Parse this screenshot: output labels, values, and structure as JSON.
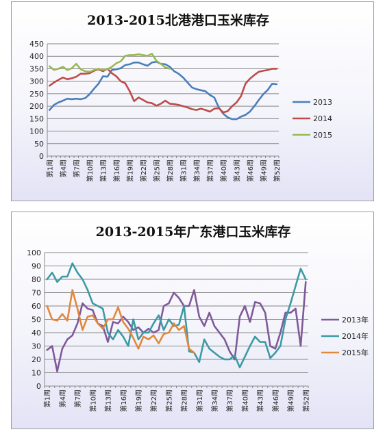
{
  "chart_data": [
    {
      "type": "line",
      "title": "2013-2015北港港口玉米库存",
      "ylim": [
        0,
        450
      ],
      "yticks": [
        0,
        50,
        100,
        150,
        200,
        250,
        300,
        350,
        400,
        450
      ],
      "xticks": [
        "第1周",
        "第4周",
        "第7周",
        "第10周",
        "第13周",
        "第16周",
        "第19周",
        "第22周",
        "第25周",
        "第28周",
        "第31周",
        "第34周",
        "第37周",
        "第40周",
        "第43周",
        "第46周",
        "第49周",
        "第52周"
      ],
      "legend_position": "right",
      "grid": true,
      "series": [
        {
          "name": "2013",
          "color": "#4a7ebb",
          "values": [
            185,
            205,
            215,
            222,
            230,
            228,
            230,
            228,
            232,
            248,
            270,
            290,
            320,
            318,
            345,
            348,
            352,
            365,
            368,
            375,
            375,
            368,
            362,
            375,
            378,
            370,
            368,
            358,
            340,
            330,
            315,
            295,
            275,
            268,
            264,
            260,
            245,
            235,
            195,
            170,
            155,
            148,
            148,
            158,
            165,
            178,
            200,
            225,
            248,
            265,
            290,
            288
          ]
        },
        {
          "name": "2014",
          "color": "#be4b48",
          "values": [
            282,
            295,
            305,
            315,
            308,
            312,
            318,
            330,
            330,
            332,
            342,
            348,
            340,
            350,
            332,
            320,
            300,
            292,
            260,
            220,
            235,
            225,
            215,
            212,
            202,
            210,
            222,
            210,
            208,
            205,
            200,
            195,
            188,
            185,
            190,
            185,
            178,
            190,
            192,
            175,
            180,
            200,
            215,
            240,
            290,
            310,
            325,
            338,
            342,
            345,
            350,
            350
          ]
        },
        {
          "name": "2015",
          "color": "#98b954",
          "values": [
            360,
            345,
            350,
            358,
            345,
            352,
            370,
            348,
            340,
            338,
            345,
            350,
            345,
            348,
            358,
            372,
            380,
            402,
            405,
            405,
            408,
            405,
            402,
            410,
            382,
            370,
            355,
            350
          ]
        }
      ]
    },
    {
      "type": "line",
      "title": "2013-2015年广东港口玉米库存",
      "ylim": [
        0,
        100
      ],
      "yticks": [
        0,
        10,
        20,
        30,
        40,
        50,
        60,
        70,
        80,
        90,
        100
      ],
      "xticks": [
        "第1周",
        "第4周",
        "第7周",
        "第10周",
        "第13周",
        "第16周",
        "第19周",
        "第22周",
        "第25周",
        "第28周",
        "第31周",
        "第34周",
        "第37周",
        "第40周",
        "第43周",
        "第46周",
        "第49周",
        "第52周"
      ],
      "legend_position": "right",
      "grid": true,
      "series": [
        {
          "name": "2013年",
          "color": "#7f5a99",
          "values": [
            27,
            30,
            11,
            28,
            35,
            38,
            47,
            62,
            58,
            57,
            47,
            45,
            33,
            48,
            47,
            52,
            48,
            42,
            44,
            40,
            43,
            40,
            42,
            60,
            62,
            70,
            66,
            60,
            60,
            72,
            52,
            45,
            55,
            45,
            40,
            35,
            26,
            20,
            52,
            60,
            48,
            63,
            62,
            55,
            30,
            28,
            40,
            55,
            55,
            58,
            30,
            78
          ]
        },
        {
          "name": "2014年",
          "color": "#3c9aa4",
          "values": [
            80,
            85,
            78,
            82,
            82,
            92,
            85,
            80,
            72,
            62,
            60,
            58,
            40,
            35,
            42,
            37,
            30,
            50,
            35,
            40,
            40,
            47,
            53,
            42,
            50,
            45,
            46,
            60,
            26,
            25,
            18,
            35,
            28,
            25,
            22,
            20,
            20,
            23,
            14,
            22,
            30,
            37,
            33,
            33,
            21,
            25,
            30,
            50,
            62,
            75,
            88,
            80
          ]
        },
        {
          "name": "2015年",
          "color": "#e2883a",
          "values": [
            60,
            50,
            49,
            54,
            49,
            72,
            58,
            42,
            52,
            53,
            47,
            43,
            50,
            50,
            59,
            48,
            43,
            36,
            28,
            37,
            35,
            38,
            32,
            39,
            40,
            47,
            42,
            45,
            28,
            25
          ]
        }
      ]
    }
  ]
}
